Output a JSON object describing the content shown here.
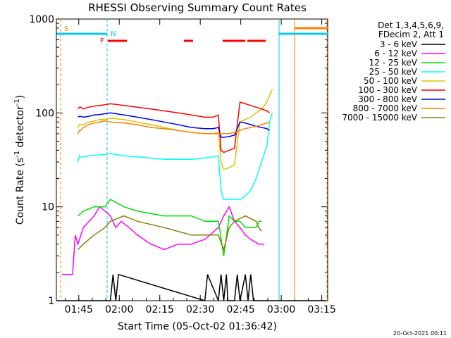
{
  "chart_data": {
    "type": "line",
    "title": "RHESSI Observing Summary Count Rates",
    "xlabel": "Start Time (05-Oct-02 01:36:42)",
    "ylabel_main": "Count Rate (s",
    "ylabel_sup1": "-1",
    "ylabel_mid": " detector",
    "ylabel_sup2": "-1",
    "ylabel_end": ")",
    "y_scale": "log",
    "ylim": [
      1,
      1000
    ],
    "xlim_minutes": [
      0,
      100.5
    ],
    "xticks": [
      {
        "label": "01:45",
        "minute": 8.3
      },
      {
        "label": "02:00",
        "minute": 23.3
      },
      {
        "label": "02:15",
        "minute": 38.3
      },
      {
        "label": "02:30",
        "minute": 53.3
      },
      {
        "label": "02:45",
        "minute": 68.3
      },
      {
        "label": "03:00",
        "minute": 83.3
      },
      {
        "label": "03:15",
        "minute": 98.3
      }
    ],
    "yticks": [
      {
        "label": "1",
        "value": 1
      },
      {
        "label": "10",
        "value": 10
      },
      {
        "label": "100",
        "value": 100
      },
      {
        "label": "1000",
        "value": 1000
      }
    ],
    "legend_header": [
      "Det 1,3,4,5,6,9,",
      "FDecim 2, Att 1"
    ],
    "legend_placement": "right",
    "series": [
      {
        "name": "3 - 6 keV",
        "color": "#000000",
        "x": [
          0,
          1,
          1.5,
          20,
          21,
          22,
          23,
          55,
          56,
          60,
          61,
          62,
          63,
          63.5,
          66,
          67,
          68,
          70,
          71,
          72,
          73,
          74,
          100
        ],
        "y": [
          1,
          1,
          1,
          1,
          1.9,
          1,
          1.9,
          1,
          1.9,
          1,
          1.9,
          1,
          1.9,
          1,
          1,
          1.9,
          1,
          1.9,
          1,
          1.9,
          1,
          1,
          1
        ]
      },
      {
        "name": "6 - 12 keV",
        "color": "#ff00ff",
        "x": [
          2,
          3,
          6,
          7,
          8,
          10,
          14,
          16,
          18,
          20,
          22,
          24,
          27,
          30,
          35,
          40,
          45,
          50,
          55,
          60,
          62,
          64,
          66,
          68,
          70,
          72,
          75,
          76,
          77
        ],
        "y": [
          1.9,
          1.9,
          1.9,
          5,
          4,
          6,
          8,
          10,
          9,
          8,
          6,
          7,
          6,
          5,
          4,
          3.5,
          4,
          4,
          4.5,
          6,
          8,
          10,
          7,
          6,
          5,
          4.5,
          4,
          4,
          4
        ]
      },
      {
        "name": "12 - 25 keV",
        "color": "#00e000",
        "x": [
          8,
          10,
          14,
          18,
          20,
          25,
          30,
          40,
          50,
          55,
          60,
          62,
          64,
          66,
          68,
          70,
          74,
          75,
          76
        ],
        "y": [
          8,
          9,
          10,
          10,
          12,
          10,
          9,
          8,
          8,
          7,
          7,
          3,
          8,
          7,
          7,
          6,
          6,
          7,
          7
        ]
      },
      {
        "name": "25 - 50 keV",
        "color": "#00ffff",
        "x": [
          8,
          8.5,
          9,
          10,
          12,
          14,
          16,
          18,
          20,
          22,
          25,
          30,
          35,
          40,
          45,
          50,
          55,
          58,
          60,
          61,
          62,
          64,
          66,
          68,
          70,
          72,
          74,
          76,
          78,
          79,
          80
        ],
        "y": [
          30,
          35,
          34,
          34,
          35,
          35,
          36,
          36,
          37,
          36,
          35,
          34,
          33,
          32,
          32,
          32,
          33,
          34,
          35,
          15,
          12,
          12,
          12,
          12,
          13,
          15,
          20,
          30,
          45,
          80,
          100
        ]
      },
      {
        "name": "50 - 100 keV",
        "color": "#e0c000",
        "x": [
          8,
          8.5,
          9,
          10,
          12,
          14,
          16,
          18,
          20,
          25,
          30,
          35,
          40,
          45,
          50,
          55,
          58,
          60,
          61,
          62,
          64,
          66,
          68,
          70,
          72,
          74,
          76,
          78,
          80
        ],
        "y": [
          70,
          75,
          75,
          75,
          80,
          82,
          85,
          85,
          88,
          85,
          80,
          75,
          70,
          65,
          62,
          60,
          60,
          62,
          30,
          25,
          26,
          28,
          80,
          85,
          90,
          100,
          110,
          130,
          180
        ]
      },
      {
        "name": "100 - 300 keV",
        "color": "#ff0000",
        "x": [
          8,
          8.5,
          9,
          10,
          12,
          14,
          16,
          18,
          20,
          22,
          25,
          30,
          35,
          40,
          45,
          50,
          55,
          58,
          60,
          61,
          62,
          64,
          66,
          68,
          70,
          72,
          74,
          76,
          78,
          79
        ],
        "y": [
          110,
          115,
          115,
          110,
          115,
          118,
          120,
          122,
          125,
          123,
          120,
          115,
          110,
          105,
          100,
          95,
          90,
          90,
          95,
          40,
          38,
          40,
          42,
          130,
          125,
          120,
          115,
          110,
          105,
          100
        ]
      },
      {
        "name": "300 - 800 keV",
        "color": "#0000ff",
        "x": [
          8,
          8.5,
          9,
          10,
          12,
          14,
          16,
          18,
          20,
          22,
          25,
          30,
          35,
          40,
          45,
          50,
          55,
          58,
          60,
          61,
          62,
          64,
          66,
          68,
          70,
          72,
          74,
          76,
          78,
          79
        ],
        "y": [
          90,
          92,
          92,
          90,
          92,
          95,
          96,
          98,
          100,
          98,
          95,
          90,
          85,
          80,
          75,
          70,
          68,
          68,
          70,
          55,
          55,
          56,
          58,
          80,
          78,
          75,
          72,
          70,
          68,
          65
        ]
      },
      {
        "name": "800 - 7000 keV",
        "color": "#ff8000",
        "x": [
          8,
          8.5,
          9,
          10,
          12,
          14,
          16,
          18,
          20,
          25,
          30,
          35,
          40,
          45,
          50,
          55,
          58,
          60,
          62,
          64,
          66,
          68,
          70,
          72,
          74,
          76,
          78,
          79
        ],
        "y": [
          60,
          65,
          65,
          70,
          75,
          78,
          80,
          82,
          80,
          78,
          75,
          70,
          68,
          65,
          62,
          60,
          60,
          60,
          60,
          60,
          62,
          65,
          68,
          70,
          72,
          75,
          78,
          80
        ]
      },
      {
        "name": "7000 - 15000 keV",
        "color": "#808000",
        "x": [
          8,
          10,
          14,
          18,
          20,
          25,
          30,
          40,
          50,
          55,
          60,
          62,
          64,
          66,
          68,
          70,
          74,
          75,
          76
        ],
        "y": [
          3.5,
          4,
          5,
          6,
          7,
          8,
          7,
          6,
          5,
          5,
          5,
          3.5,
          6,
          7,
          7.5,
          8,
          7,
          6,
          5.5
        ]
      }
    ],
    "flags": [
      {
        "label": "S",
        "color": "#ff8000"
      },
      {
        "label": "N",
        "color": "#00c8ff"
      },
      {
        "label": "F",
        "color": "#ff0000"
      }
    ],
    "footer_date": "20-Oct-2021 00:11"
  }
}
